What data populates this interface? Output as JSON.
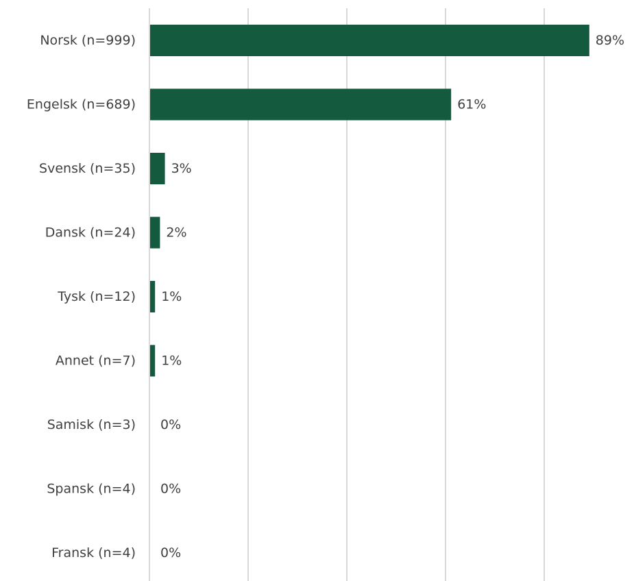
{
  "chart_data": {
    "type": "bar",
    "orientation": "horizontal",
    "categories": [
      "Norsk (n=999)",
      "Engelsk (n=689)",
      "Svensk (n=35)",
      "Dansk (n=24)",
      "Tysk (n=12)",
      "Annet (n=7)",
      "Samisk (n=3)",
      "Spansk (n=4)",
      "Fransk (n=4)"
    ],
    "values": [
      89,
      61,
      3,
      2,
      1,
      1,
      0,
      0,
      0
    ],
    "value_labels": [
      "89%",
      "61%",
      "3%",
      "2%",
      "1%",
      "1%",
      "0%",
      "0%",
      "0%"
    ],
    "xlim": [
      0,
      100
    ],
    "grid": true,
    "bar_color": "#145a3f",
    "grid_color": "#d9d9d9",
    "text_color": "#404040"
  }
}
